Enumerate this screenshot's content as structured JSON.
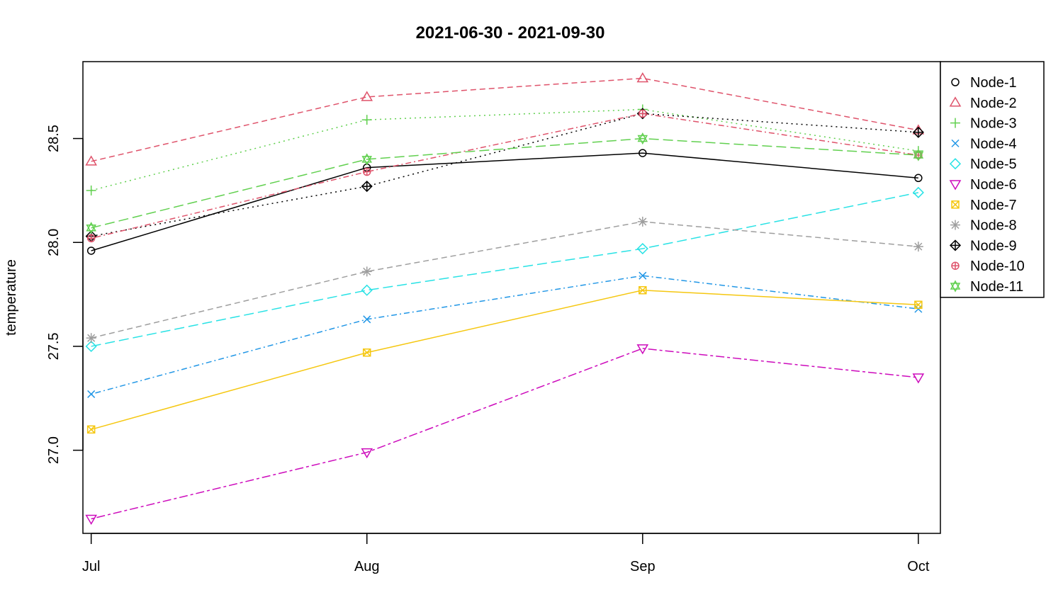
{
  "chart_data": {
    "type": "line",
    "title": "2021-06-30 - 2021-09-30",
    "xlabel": "",
    "ylabel": "temperature",
    "categories": [
      "Jul",
      "Aug",
      "Sep",
      "Oct"
    ],
    "x": [
      0,
      1,
      2,
      3
    ],
    "xlim": [
      -0.03,
      3.08
    ],
    "ylim": [
      26.6,
      28.87
    ],
    "yticks": [
      27.0,
      27.5,
      28.0,
      28.5
    ],
    "ytick_labels": [
      "27.0",
      "27.5",
      "28.0",
      "28.5"
    ],
    "grid": false,
    "legend": "top-right",
    "series": [
      {
        "name": "Node-1",
        "color": "#000000",
        "marker": "circle",
        "dash": "solid",
        "values": [
          27.96,
          28.36,
          28.43,
          28.31
        ]
      },
      {
        "name": "Node-2",
        "color": "#DF536B",
        "marker": "triangle-up",
        "dash": "dashed",
        "values": [
          28.39,
          28.7,
          28.79,
          28.54
        ]
      },
      {
        "name": "Node-3",
        "color": "#61D04F",
        "marker": "plus",
        "dash": "dotted",
        "values": [
          28.25,
          28.59,
          28.64,
          28.44
        ]
      },
      {
        "name": "Node-4",
        "color": "#2297E6",
        "marker": "x",
        "dash": "dotdash",
        "values": [
          27.27,
          27.63,
          27.84,
          27.68
        ]
      },
      {
        "name": "Node-5",
        "color": "#28E2E5",
        "marker": "diamond",
        "dash": "longdash",
        "values": [
          27.5,
          27.77,
          27.97,
          28.24
        ]
      },
      {
        "name": "Node-6",
        "color": "#CD0BBC",
        "marker": "triangle-down",
        "dash": "twodash",
        "values": [
          26.67,
          26.99,
          27.49,
          27.35
        ]
      },
      {
        "name": "Node-7",
        "color": "#F5C710",
        "marker": "square-x",
        "dash": "solid",
        "values": [
          27.1,
          27.47,
          27.77,
          27.7
        ]
      },
      {
        "name": "Node-8",
        "color": "#9E9E9E",
        "marker": "asterisk",
        "dash": "dashed",
        "values": [
          27.54,
          27.86,
          28.1,
          27.98
        ]
      },
      {
        "name": "Node-9",
        "color": "#000000",
        "marker": "diamond-plus",
        "dash": "dotted",
        "values": [
          28.03,
          28.27,
          28.62,
          28.53
        ]
      },
      {
        "name": "Node-10",
        "color": "#DF536B",
        "marker": "circle-plus",
        "dash": "dotdash",
        "values": [
          28.02,
          28.34,
          28.62,
          28.42
        ]
      },
      {
        "name": "Node-11",
        "color": "#61D04F",
        "marker": "star-of-david",
        "dash": "longdash",
        "values": [
          28.07,
          28.4,
          28.5,
          28.42
        ]
      }
    ]
  }
}
